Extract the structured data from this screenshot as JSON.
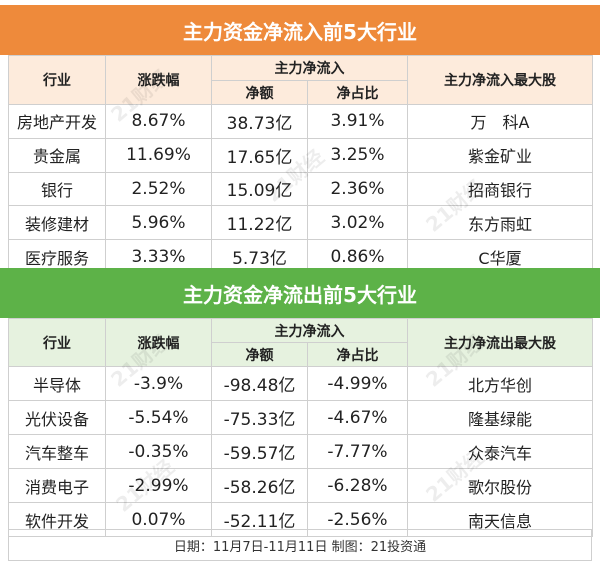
{
  "inflow": {
    "title": "主力资金净流入前5大行业",
    "headers": {
      "industry": "行业",
      "change": "涨跌幅",
      "group": "主力净流入",
      "net": "净额",
      "ratio": "净占比",
      "top_stock": "主力净流入最大股"
    },
    "rows": [
      {
        "industry": "房地产开发",
        "change": "8.67%",
        "net": "38.73亿",
        "ratio": "3.91%",
        "stock": "万　科A"
      },
      {
        "industry": "贵金属",
        "change": "11.69%",
        "net": "17.65亿",
        "ratio": "3.25%",
        "stock": "紫金矿业"
      },
      {
        "industry": "银行",
        "change": "2.52%",
        "net": "15.09亿",
        "ratio": "2.36%",
        "stock": "招商银行"
      },
      {
        "industry": "装修建材",
        "change": "5.96%",
        "net": "11.22亿",
        "ratio": "3.02%",
        "stock": "东方雨虹"
      },
      {
        "industry": "医疗服务",
        "change": "3.33%",
        "net": "5.73亿",
        "ratio": "0.86%",
        "stock": "C华厦"
      }
    ]
  },
  "outflow": {
    "title": "主力资金净流出前5大行业",
    "headers": {
      "industry": "行业",
      "change": "涨跌幅",
      "group": "主力净流入",
      "net": "净额",
      "ratio": "净占比",
      "top_stock": "主力净流出最大股"
    },
    "rows": [
      {
        "industry": "半导体",
        "change": "-3.9%",
        "net": "-98.48亿",
        "ratio": "-4.99%",
        "stock": "北方华创"
      },
      {
        "industry": "光伏设备",
        "change": "-5.54%",
        "net": "-75.33亿",
        "ratio": "-4.67%",
        "stock": "隆基绿能"
      },
      {
        "industry": "汽车整车",
        "change": "-0.35%",
        "net": "-59.57亿",
        "ratio": "-7.77%",
        "stock": "众泰汽车"
      },
      {
        "industry": "消费电子",
        "change": "-2.99%",
        "net": "-58.26亿",
        "ratio": "-6.28%",
        "stock": "歌尔股份"
      },
      {
        "industry": "软件开发",
        "change": "0.07%",
        "net": "-52.11亿",
        "ratio": "-2.56%",
        "stock": "南天信息"
      }
    ]
  },
  "footer": "日期：11月7日-11月11日 制图：21投资通",
  "watermark": "21财经",
  "colors": {
    "inflow_header": "#ee8a3b",
    "outflow_header": "#5db248"
  }
}
